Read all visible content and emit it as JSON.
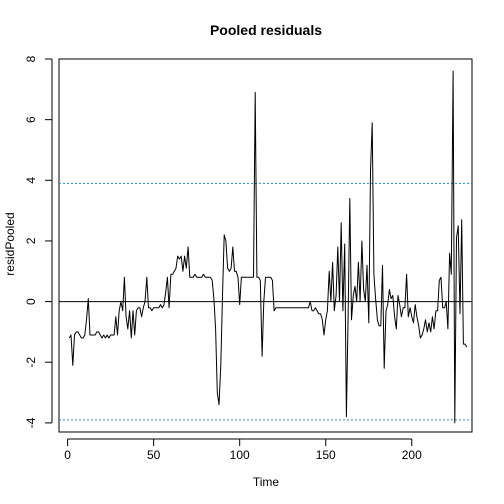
{
  "chart_data": {
    "type": "line",
    "title": "Pooled residuals",
    "xlabel": "Time",
    "ylabel": "residPooled",
    "xlim": [
      -5,
      235
    ],
    "ylim": [
      -4.3,
      8.0
    ],
    "x_ticks": [
      0,
      50,
      100,
      150,
      200
    ],
    "y_ticks": [
      -4,
      -2,
      0,
      2,
      4,
      6,
      8
    ],
    "hlines": [
      {
        "y": 0,
        "style": "solid",
        "color": "#000000"
      },
      {
        "y": 3.9,
        "style": "dotted",
        "color": "#2b8cbe"
      },
      {
        "y": -3.9,
        "style": "dotted",
        "color": "#2b8cbe"
      }
    ],
    "grid": false,
    "series": [
      {
        "x": [
          1,
          2,
          3,
          4,
          5,
          6,
          7,
          8,
          9,
          10,
          11,
          12,
          13,
          14,
          15,
          16,
          17,
          18,
          19,
          20,
          21,
          22,
          23,
          24,
          25,
          26,
          27,
          28,
          29,
          30,
          31,
          32,
          33,
          34,
          35,
          36,
          37,
          38,
          39,
          40,
          41,
          42,
          43,
          44,
          45,
          46,
          47,
          48,
          49,
          50,
          51,
          52,
          53,
          54,
          55,
          56,
          57,
          58,
          59,
          60,
          61,
          62,
          63,
          64,
          65,
          66,
          67,
          68,
          69,
          70,
          71,
          72,
          73,
          74,
          75,
          76,
          77,
          78,
          79,
          80,
          81,
          82,
          83,
          84,
          85,
          86,
          87,
          88,
          89,
          90,
          91,
          92,
          93,
          94,
          95,
          96,
          97,
          98,
          99,
          100,
          101,
          102,
          103,
          104,
          105,
          106,
          107,
          108,
          109,
          110,
          111,
          112,
          113,
          114,
          115,
          116,
          117,
          118,
          119,
          120,
          121,
          122,
          123,
          124,
          125,
          126,
          127,
          128,
          129,
          130,
          131,
          132,
          133,
          134,
          135,
          136,
          137,
          138,
          139,
          140,
          141,
          142,
          143,
          144,
          145,
          146,
          147,
          148,
          149,
          150,
          151,
          152,
          153,
          154,
          155,
          156,
          157,
          158,
          159,
          160,
          161,
          162,
          163,
          164,
          165,
          166,
          167,
          168,
          169,
          170,
          171,
          172,
          173,
          174,
          175,
          176,
          177,
          178,
          179,
          180,
          181,
          182,
          183,
          184,
          185,
          186,
          187,
          188,
          189,
          190,
          191,
          192,
          193,
          194,
          195,
          196,
          197,
          198,
          199,
          200,
          201,
          202,
          203,
          204,
          205,
          206,
          207,
          208,
          209,
          210,
          211,
          212,
          213,
          214,
          215,
          216,
          217,
          218,
          219,
          220,
          221,
          222,
          223,
          224,
          225,
          226,
          227,
          228,
          229,
          230,
          231,
          232
        ],
        "y": [
          -1.2,
          -1.1,
          -2.1,
          -1.1,
          -1.0,
          -1.0,
          -1.1,
          -1.2,
          -1.2,
          -1.1,
          -0.6,
          0.1,
          -1.1,
          -1.1,
          -1.1,
          -1.1,
          -1.0,
          -1.0,
          -1.1,
          -1.2,
          -1.1,
          -1.2,
          -1.1,
          -1.2,
          -1.1,
          -1.1,
          -1.1,
          -0.5,
          -1.1,
          -0.3,
          0.0,
          -0.3,
          0.8,
          -0.5,
          -0.9,
          -0.3,
          -1.2,
          -0.3,
          -1.1,
          -0.3,
          -0.2,
          -0.2,
          -0.5,
          -0.2,
          0.0,
          0.8,
          -0.2,
          -0.2,
          -0.3,
          -0.2,
          -0.2,
          -0.2,
          -0.2,
          -0.1,
          -0.2,
          -0.1,
          0.3,
          0.8,
          -0.2,
          0.9,
          0.9,
          1.0,
          1.1,
          1.5,
          1.4,
          1.5,
          1.0,
          1.5,
          1.1,
          1.8,
          0.8,
          0.8,
          0.8,
          0.9,
          0.8,
          0.8,
          0.8,
          0.8,
          0.9,
          0.8,
          0.8,
          0.8,
          0.8,
          0.7,
          0.1,
          -0.9,
          -3.0,
          -3.4,
          -2.1,
          0.2,
          2.2,
          2.0,
          1.1,
          1.0,
          1.1,
          1.8,
          1.0,
          1.0,
          0.8,
          -0.1,
          0.8,
          0.8,
          0.8,
          0.8,
          0.8,
          0.8,
          0.8,
          0.8,
          6.9,
          0.8,
          0.8,
          0.7,
          -1.8,
          0.0,
          0.8,
          0.8,
          0.8,
          0.8,
          0.7,
          -0.3,
          -0.2,
          -0.2,
          -0.2,
          -0.2,
          -0.2,
          -0.2,
          -0.2,
          -0.2,
          -0.2,
          -0.2,
          -0.2,
          -0.2,
          -0.2,
          -0.2,
          -0.2,
          -0.2,
          -0.2,
          -0.2,
          -0.2,
          -0.2,
          0.0,
          -0.3,
          -0.3,
          -0.2,
          -0.3,
          -0.4,
          -0.4,
          -0.6,
          -1.1,
          -0.6,
          -0.3,
          1.0,
          0.0,
          1.3,
          -0.3,
          0.2,
          1.8,
          0.0,
          2.6,
          -0.3,
          1.9,
          -3.8,
          -0.5,
          3.4,
          -0.6,
          0.2,
          0.5,
          0.0,
          1.3,
          0.0,
          2.0,
          0.4,
          0.0,
          1.2,
          -0.7,
          4.3,
          5.9,
          0.9,
          0.1,
          -0.6,
          -0.8,
          -0.8,
          1.2,
          -2.2,
          -0.3,
          -0.1,
          0.4,
          0.1,
          0.2,
          -0.5,
          -0.9,
          0.2,
          -0.1,
          -0.5,
          -0.2,
          -0.2,
          0.9,
          -0.5,
          -0.2,
          -0.5,
          -0.7,
          -0.1,
          -0.5,
          -0.8,
          -1.2,
          -1.1,
          -0.9,
          -0.6,
          -1.0,
          -0.7,
          -1.0,
          -0.5,
          -0.9,
          -0.3,
          -0.3,
          0.7,
          0.8,
          -0.2,
          -0.2,
          0.0,
          -0.9,
          1.6,
          0.9,
          7.6,
          -4.0,
          2.1,
          2.5,
          -0.4,
          2.7,
          -1.4,
          -1.4,
          -1.5
        ]
      }
    ]
  }
}
